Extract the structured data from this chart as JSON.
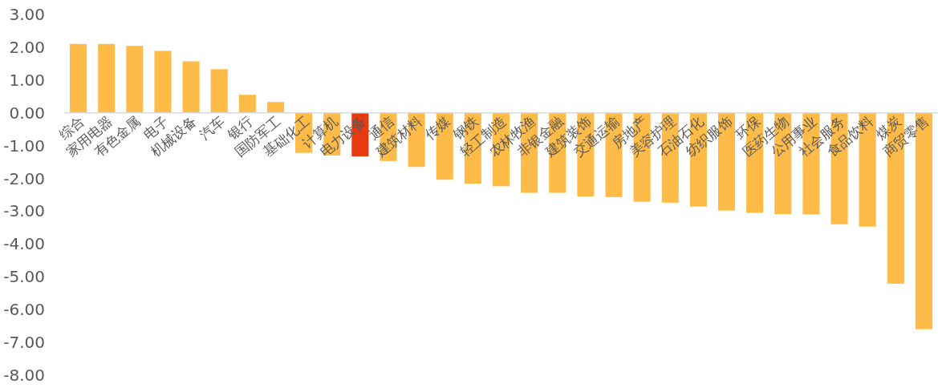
{
  "chart_data": {
    "type": "bar",
    "categories": [
      "综合",
      "家用电器",
      "有色金属",
      "电子",
      "机械设备",
      "汽车",
      "银行",
      "国防军工",
      "基础化工",
      "计算机",
      "电力设备",
      "通信",
      "建筑材料",
      "传媒",
      "钢铁",
      "轻工制造",
      "农林牧渔",
      "非银金融",
      "建筑装饰",
      "交通运输",
      "房地产",
      "美容护理",
      "石油石化",
      "纺织服饰",
      "环保",
      "医药生物",
      "公用事业",
      "社会服务",
      "食品饮料",
      "煤炭",
      "商贸零售"
    ],
    "values": [
      2.1,
      2.1,
      2.04,
      1.89,
      1.57,
      1.33,
      0.55,
      0.33,
      -1.22,
      -1.3,
      -1.33,
      -1.47,
      -1.65,
      -2.04,
      -2.16,
      -2.24,
      -2.44,
      -2.44,
      -2.55,
      -2.57,
      -2.71,
      -2.74,
      -2.86,
      -2.98,
      -3.05,
      -3.09,
      -3.1,
      -3.4,
      -3.47,
      -5.21,
      -6.6
    ],
    "colors": [
      "#ffbb47",
      "#ffbb47",
      "#ffbb47",
      "#ffbb47",
      "#ffbb47",
      "#ffbb47",
      "#ffbb47",
      "#ffbb47",
      "#ffbb47",
      "#ffbb47",
      "#e63a11",
      "#ffbb47",
      "#ffbb47",
      "#ffbb47",
      "#ffbb47",
      "#ffbb47",
      "#ffbb47",
      "#ffbb47",
      "#ffbb47",
      "#ffbb47",
      "#ffbb47",
      "#ffbb47",
      "#ffbb47",
      "#ffbb47",
      "#ffbb47",
      "#ffbb47",
      "#ffbb47",
      "#ffbb47",
      "#ffbb47",
      "#ffbb47",
      "#ffbb47"
    ],
    "ylim": [
      -8,
      3
    ],
    "yticks": [
      {
        "value": 3,
        "label": "3.00"
      },
      {
        "value": 2,
        "label": "2.00"
      },
      {
        "value": 1,
        "label": "1.00"
      },
      {
        "value": 0,
        "label": "0.00"
      },
      {
        "value": -1,
        "label": "-1.00"
      },
      {
        "value": -2,
        "label": "-2.00"
      },
      {
        "value": -3,
        "label": "-3.00"
      },
      {
        "value": -4,
        "label": "-4.00"
      },
      {
        "value": -5,
        "label": "-5.00"
      },
      {
        "value": -6,
        "label": "-6.00"
      },
      {
        "value": -7,
        "label": "-7.00"
      },
      {
        "value": -8,
        "label": "-8.00"
      }
    ]
  }
}
